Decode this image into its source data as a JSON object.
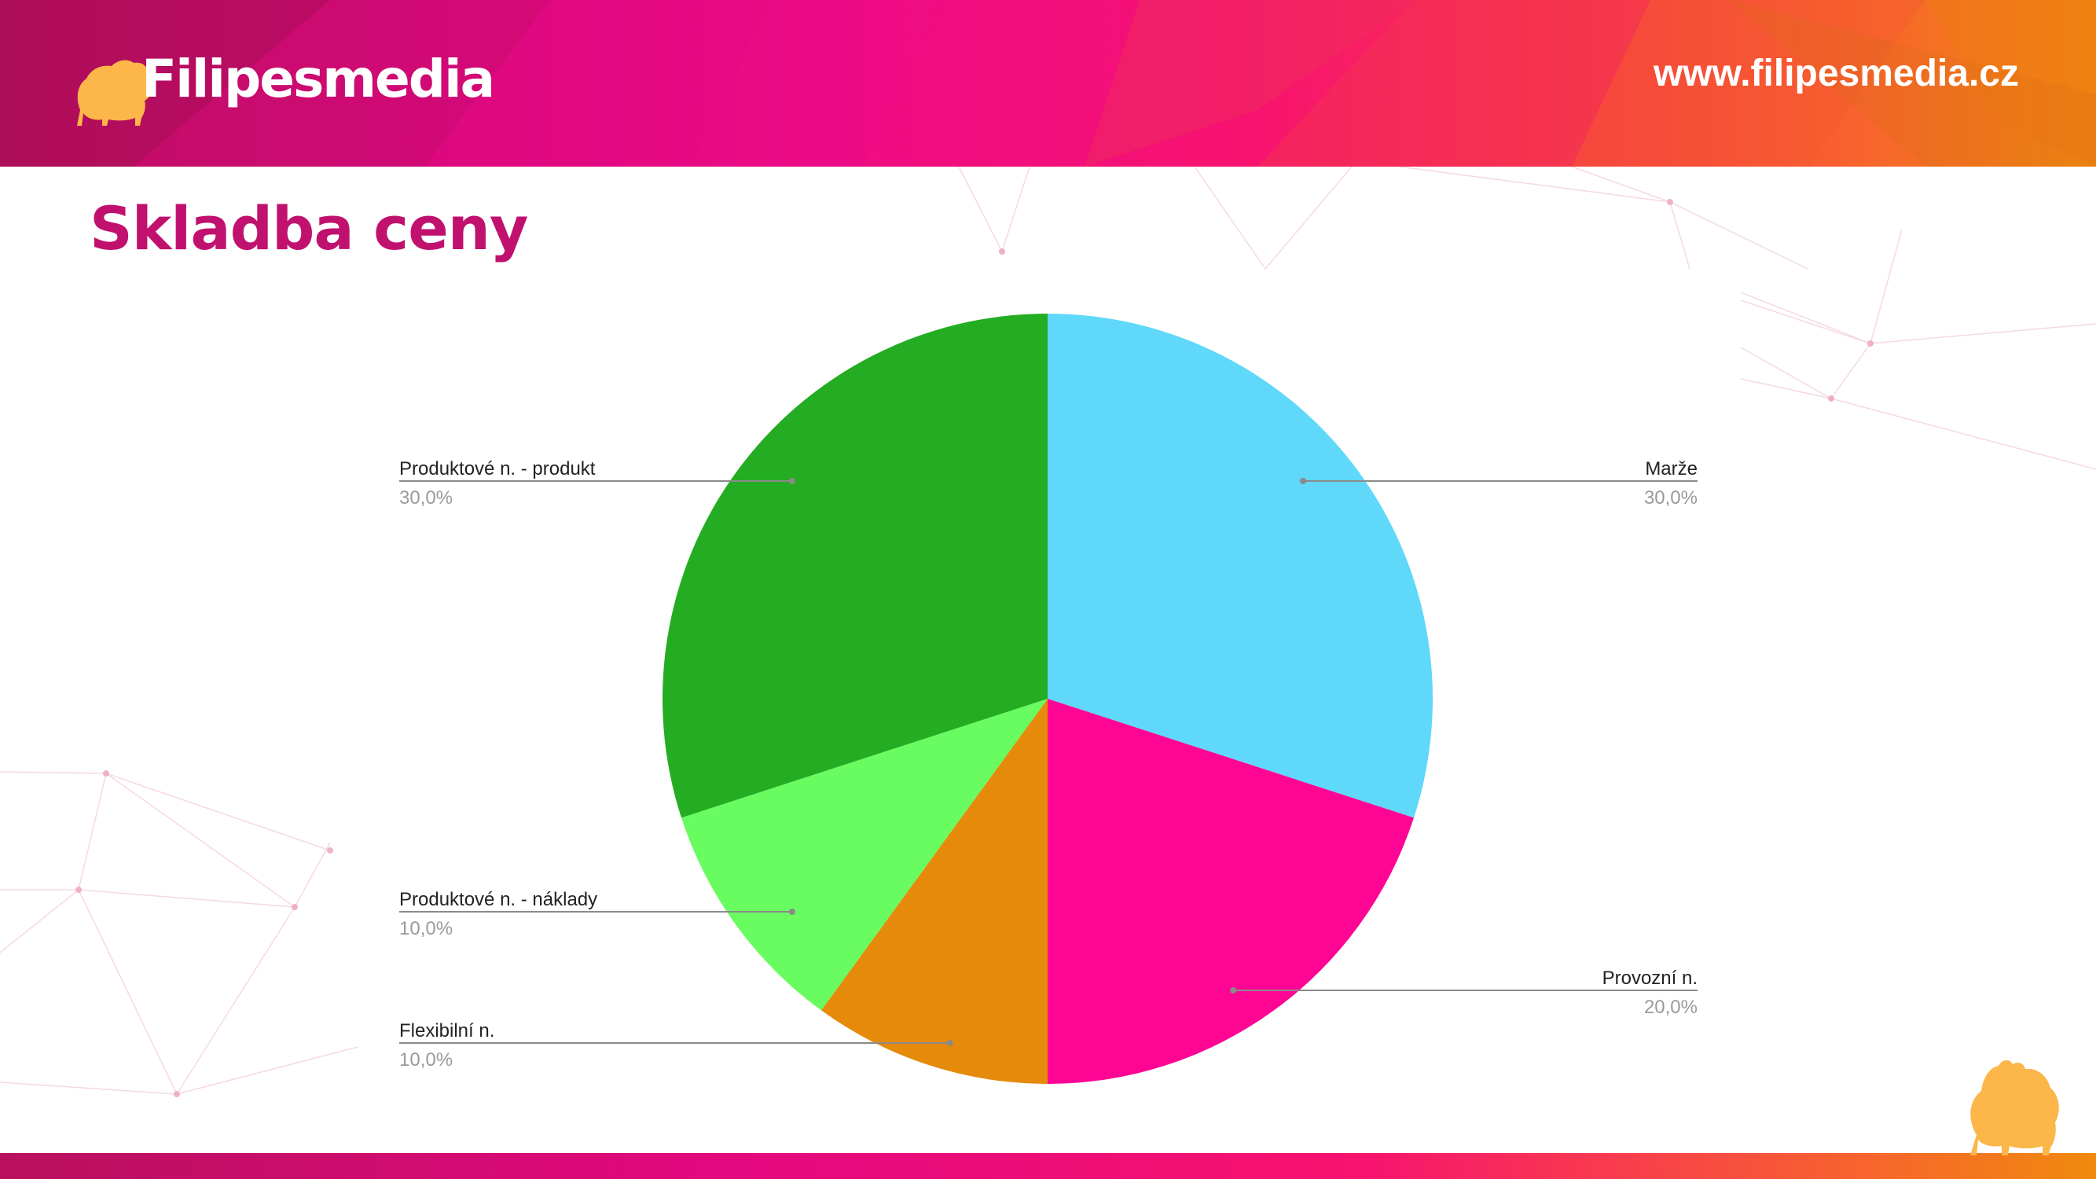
{
  "brand": {
    "logo_text": "Filipesmedia",
    "logo_icon": "dog-silhouette-icon",
    "site_url": "www.filipesmedia.cz"
  },
  "slide": {
    "title": "Skladba ceny"
  },
  "colors": {
    "title": "#c1116f",
    "brand_dog": "#fdb64a"
  },
  "chart_data": {
    "type": "pie",
    "title": "",
    "slices": [
      {
        "label": "Marže",
        "value": 30,
        "display": "30,0%",
        "color": "#5fd8fa"
      },
      {
        "label": "Provozní n.",
        "value": 20,
        "display": "20,0%",
        "color": "#fe0594"
      },
      {
        "label": "Flexibilní n.",
        "value": 10,
        "display": "10,0%",
        "color": "#e58a0a"
      },
      {
        "label": "Produktové n. - náklady",
        "value": 10,
        "display": "10,0%",
        "color": "#69fc61"
      },
      {
        "label": "Produktové n. - produkt",
        "value": 30,
        "display": "30,0%",
        "color": "#24ac22"
      }
    ],
    "start_angle": "12 o'clock",
    "direction": "clockwise",
    "legend": "callout-labels"
  }
}
